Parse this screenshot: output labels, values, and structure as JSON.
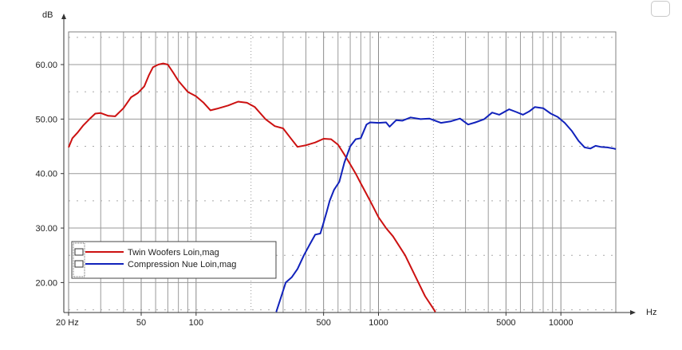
{
  "chart_data": {
    "type": "line",
    "title": "",
    "xlabel": "Hz",
    "ylabel": "dB",
    "x_scale": "log",
    "xlim": [
      20,
      20000
    ],
    "ylim": [
      14.5,
      66
    ],
    "grid": true,
    "legend_position": "bottom-left",
    "x_ticks": [
      {
        "value": 20,
        "label": "20 Hz"
      },
      {
        "value": 50,
        "label": "50"
      },
      {
        "value": 100,
        "label": "100"
      },
      {
        "value": 500,
        "label": "500"
      },
      {
        "value": 1000,
        "label": "1000"
      },
      {
        "value": 5000,
        "label": "5000"
      },
      {
        "value": 10000,
        "label": "10000"
      }
    ],
    "y_ticks": [
      {
        "value": 20,
        "label": "20.00"
      },
      {
        "value": 30,
        "label": "30.00"
      },
      {
        "value": 40,
        "label": "40.00"
      },
      {
        "value": 50,
        "label": "50.00"
      },
      {
        "value": 60,
        "label": "60.00"
      }
    ],
    "series": [
      {
        "name": "Twin Woofers Loin,mag",
        "color": "#cc1111",
        "points": [
          [
            20,
            44.8
          ],
          [
            21,
            46.5
          ],
          [
            22.5,
            47.6
          ],
          [
            24,
            48.8
          ],
          [
            26,
            50
          ],
          [
            28,
            51
          ],
          [
            30,
            51.1
          ],
          [
            33,
            50.6
          ],
          [
            36,
            50.5
          ],
          [
            40,
            52
          ],
          [
            44,
            54
          ],
          [
            48,
            54.8
          ],
          [
            52,
            56
          ],
          [
            55,
            58
          ],
          [
            58,
            59.5
          ],
          [
            62,
            60
          ],
          [
            66,
            60.2
          ],
          [
            70,
            60
          ],
          [
            75,
            58.5
          ],
          [
            80,
            57
          ],
          [
            90,
            55
          ],
          [
            100,
            54.2
          ],
          [
            110,
            53
          ],
          [
            120,
            51.6
          ],
          [
            130,
            51.9
          ],
          [
            150,
            52.5
          ],
          [
            170,
            53.2
          ],
          [
            190,
            53
          ],
          [
            210,
            52.2
          ],
          [
            240,
            50
          ],
          [
            270,
            48.7
          ],
          [
            300,
            48.3
          ],
          [
            330,
            46.5
          ],
          [
            360,
            44.9
          ],
          [
            400,
            45.2
          ],
          [
            450,
            45.7
          ],
          [
            500,
            46.4
          ],
          [
            550,
            46.3
          ],
          [
            600,
            45.3
          ],
          [
            650,
            43.5
          ],
          [
            700,
            41.7
          ],
          [
            750,
            40
          ],
          [
            800,
            38.2
          ],
          [
            900,
            35
          ],
          [
            1000,
            32
          ],
          [
            1100,
            30
          ],
          [
            1200,
            28.5
          ],
          [
            1400,
            25
          ],
          [
            1600,
            21
          ],
          [
            1800,
            17.5
          ],
          [
            2000,
            15.2
          ],
          [
            2050,
            14.6
          ]
        ]
      },
      {
        "name": "Compression Nue Loin,mag",
        "color": "#1122bb",
        "points": [
          [
            275,
            14.6
          ],
          [
            290,
            17
          ],
          [
            310,
            20
          ],
          [
            335,
            21
          ],
          [
            360,
            22.5
          ],
          [
            390,
            25
          ],
          [
            420,
            27
          ],
          [
            450,
            28.8
          ],
          [
            480,
            29
          ],
          [
            500,
            31
          ],
          [
            520,
            33
          ],
          [
            540,
            35
          ],
          [
            570,
            37
          ],
          [
            610,
            38.5
          ],
          [
            650,
            42
          ],
          [
            700,
            45
          ],
          [
            750,
            46.3
          ],
          [
            800,
            46.5
          ],
          [
            860,
            49
          ],
          [
            900,
            49.4
          ],
          [
            1000,
            49.3
          ],
          [
            1100,
            49.4
          ],
          [
            1150,
            48.6
          ],
          [
            1250,
            49.8
          ],
          [
            1350,
            49.7
          ],
          [
            1500,
            50.3
          ],
          [
            1700,
            50
          ],
          [
            1900,
            50.1
          ],
          [
            2200,
            49.3
          ],
          [
            2500,
            49.6
          ],
          [
            2800,
            50.1
          ],
          [
            3100,
            49
          ],
          [
            3400,
            49.4
          ],
          [
            3800,
            50
          ],
          [
            4200,
            51.2
          ],
          [
            4600,
            50.8
          ],
          [
            5200,
            51.8
          ],
          [
            5700,
            51.3
          ],
          [
            6200,
            50.8
          ],
          [
            6700,
            51.4
          ],
          [
            7200,
            52.2
          ],
          [
            8000,
            52
          ],
          [
            8800,
            51
          ],
          [
            9600,
            50.4
          ],
          [
            10500,
            49.3
          ],
          [
            11500,
            47.8
          ],
          [
            12500,
            46
          ],
          [
            13500,
            44.8
          ],
          [
            14500,
            44.6
          ],
          [
            15500,
            45.1
          ],
          [
            16500,
            44.9
          ],
          [
            18000,
            44.8
          ],
          [
            19500,
            44.6
          ],
          [
            20000,
            44.5
          ]
        ]
      }
    ]
  }
}
